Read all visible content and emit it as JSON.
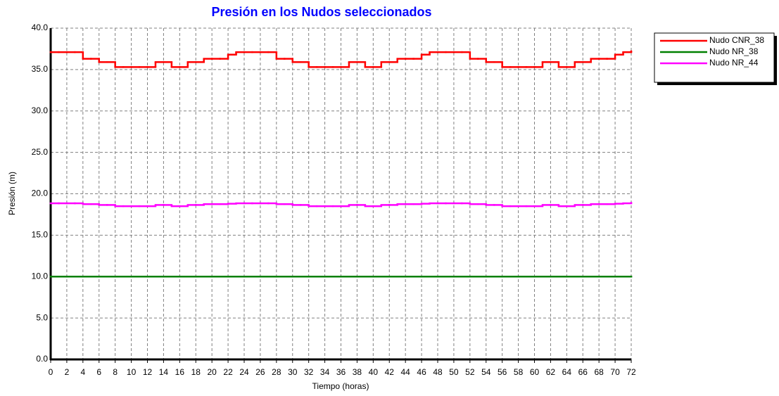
{
  "chart_data": {
    "type": "step-line",
    "title": "Presión en los Nudos seleccionados",
    "x_label": "Tiempo (horas)",
    "y_label": "Presión (m)",
    "x": [
      0,
      1,
      2,
      3,
      4,
      5,
      6,
      7,
      8,
      9,
      10,
      11,
      12,
      13,
      14,
      15,
      16,
      17,
      18,
      19,
      20,
      21,
      22,
      23,
      24,
      25,
      26,
      27,
      28,
      29,
      30,
      31,
      32,
      33,
      34,
      35,
      36,
      37,
      38,
      39,
      40,
      41,
      42,
      43,
      44,
      45,
      46,
      47,
      48,
      49,
      50,
      51,
      52,
      53,
      54,
      55,
      56,
      57,
      58,
      59,
      60,
      61,
      62,
      63,
      64,
      65,
      66,
      67,
      68,
      69,
      70,
      71,
      72
    ],
    "series": [
      {
        "name": "Nudo CNR_38",
        "color": "#ff0000",
        "values": [
          37.1,
          37.1,
          37.1,
          37.1,
          36.3,
          36.3,
          35.9,
          35.9,
          35.3,
          35.3,
          35.3,
          35.3,
          35.3,
          35.9,
          35.9,
          35.3,
          35.3,
          35.9,
          35.9,
          36.3,
          36.3,
          36.3,
          36.8,
          37.1,
          37.1,
          37.1,
          37.1,
          37.1,
          36.3,
          36.3,
          35.9,
          35.9,
          35.3,
          35.3,
          35.3,
          35.3,
          35.3,
          35.9,
          35.9,
          35.3,
          35.3,
          35.9,
          35.9,
          36.3,
          36.3,
          36.3,
          36.8,
          37.1,
          37.1,
          37.1,
          37.1,
          37.1,
          36.3,
          36.3,
          35.9,
          35.9,
          35.3,
          35.3,
          35.3,
          35.3,
          35.3,
          35.9,
          35.9,
          35.3,
          35.3,
          35.9,
          35.9,
          36.3,
          36.3,
          36.3,
          36.8,
          37.1,
          37.2
        ]
      },
      {
        "name": "Nudo NR_38",
        "color": "#008000",
        "values": [
          10,
          10,
          10,
          10,
          10,
          10,
          10,
          10,
          10,
          10,
          10,
          10,
          10,
          10,
          10,
          10,
          10,
          10,
          10,
          10,
          10,
          10,
          10,
          10,
          10,
          10,
          10,
          10,
          10,
          10,
          10,
          10,
          10,
          10,
          10,
          10,
          10,
          10,
          10,
          10,
          10,
          10,
          10,
          10,
          10,
          10,
          10,
          10,
          10,
          10,
          10,
          10,
          10,
          10,
          10,
          10,
          10,
          10,
          10,
          10,
          10,
          10,
          10,
          10,
          10,
          10,
          10,
          10,
          10,
          10,
          10,
          10,
          10
        ]
      },
      {
        "name": "Nudo NR_44",
        "color": "#ff00ff",
        "values": [
          18.85,
          18.85,
          18.85,
          18.85,
          18.75,
          18.75,
          18.65,
          18.65,
          18.5,
          18.5,
          18.5,
          18.5,
          18.5,
          18.65,
          18.65,
          18.5,
          18.5,
          18.65,
          18.65,
          18.75,
          18.75,
          18.75,
          18.8,
          18.85,
          18.85,
          18.85,
          18.85,
          18.85,
          18.75,
          18.75,
          18.65,
          18.65,
          18.5,
          18.5,
          18.5,
          18.5,
          18.5,
          18.65,
          18.65,
          18.5,
          18.5,
          18.65,
          18.65,
          18.75,
          18.75,
          18.75,
          18.8,
          18.85,
          18.85,
          18.85,
          18.85,
          18.85,
          18.75,
          18.75,
          18.65,
          18.65,
          18.5,
          18.5,
          18.5,
          18.5,
          18.5,
          18.65,
          18.65,
          18.5,
          18.5,
          18.65,
          18.65,
          18.75,
          18.75,
          18.75,
          18.8,
          18.85,
          18.9
        ]
      }
    ],
    "xlim": [
      0,
      72
    ],
    "xticks": [
      0,
      2,
      4,
      6,
      8,
      10,
      12,
      14,
      16,
      18,
      20,
      22,
      24,
      26,
      28,
      30,
      32,
      34,
      36,
      38,
      40,
      42,
      44,
      46,
      48,
      50,
      52,
      54,
      56,
      58,
      60,
      62,
      64,
      66,
      68,
      70,
      72
    ],
    "ylim": [
      0,
      40
    ],
    "yticks": [
      {
        "value": 0,
        "label": "0.0"
      },
      {
        "value": 5,
        "label": "5.0"
      },
      {
        "value": 10,
        "label": "10.0"
      },
      {
        "value": 15,
        "label": "15.0"
      },
      {
        "value": 20,
        "label": "20.0"
      },
      {
        "value": 25,
        "label": "25.0"
      },
      {
        "value": 30,
        "label": "30.0"
      },
      {
        "value": 35,
        "label": "35.0"
      },
      {
        "value": 40,
        "label": "40.0"
      }
    ],
    "grid": true,
    "legend": "right"
  }
}
